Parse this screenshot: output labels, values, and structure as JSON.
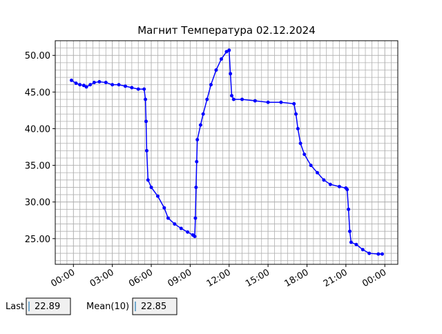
{
  "chart_data": {
    "type": "line",
    "title": "Магнит Температура 02.12.2024",
    "x": [
      -0.15,
      0.2,
      0.5,
      0.8,
      1.0,
      1.3,
      1.6,
      2.0,
      2.5,
      3.0,
      3.5,
      4.0,
      4.5,
      5.0,
      5.45,
      5.55,
      5.6,
      5.65,
      5.75,
      6.0,
      6.5,
      7.0,
      7.3,
      7.8,
      8.3,
      8.8,
      9.2,
      9.35,
      9.4,
      9.45,
      9.5,
      9.55,
      9.8,
      10.0,
      10.3,
      10.6,
      11.0,
      11.4,
      11.8,
      12.0,
      12.1,
      12.2,
      12.35,
      13.0,
      14.0,
      15.0,
      16.0,
      17.0,
      17.15,
      17.3,
      17.5,
      17.8,
      18.3,
      18.8,
      19.3,
      19.8,
      20.5,
      21.0,
      21.1,
      21.2,
      21.3,
      21.4,
      21.8,
      22.3,
      22.8,
      23.5,
      23.8
    ],
    "values": [
      46.6,
      46.2,
      46.0,
      45.9,
      45.7,
      46.0,
      46.3,
      46.4,
      46.3,
      46.0,
      46.0,
      45.8,
      45.6,
      45.4,
      45.4,
      44.0,
      41.0,
      37.0,
      33.0,
      32.0,
      30.8,
      29.2,
      27.8,
      27.0,
      26.4,
      25.9,
      25.5,
      25.3,
      27.8,
      32.0,
      35.5,
      38.5,
      40.5,
      42.0,
      44.0,
      46.0,
      48.0,
      49.5,
      50.5,
      50.7,
      47.5,
      44.5,
      44.0,
      44.0,
      43.8,
      43.6,
      43.6,
      43.4,
      42.0,
      40.0,
      38.0,
      36.5,
      35.0,
      34.0,
      33.0,
      32.4,
      32.1,
      31.9,
      31.7,
      29.0,
      26.0,
      24.5,
      24.2,
      23.5,
      23.0,
      22.9,
      22.9
    ],
    "color": "#0000ff",
    "xlim": [
      -1.4,
      25.0
    ],
    "ylim": [
      21.5,
      52.0
    ],
    "xticks": [
      {
        "value": 0,
        "label": "00:00"
      },
      {
        "value": 3,
        "label": "03:00"
      },
      {
        "value": 6,
        "label": "06:00"
      },
      {
        "value": 9,
        "label": "09:00"
      },
      {
        "value": 12,
        "label": "12:00"
      },
      {
        "value": 15,
        "label": "15:00"
      },
      {
        "value": 18,
        "label": "18:00"
      },
      {
        "value": 21,
        "label": "21:00"
      },
      {
        "value": 24,
        "label": "00:00"
      }
    ],
    "yticks": [
      {
        "value": 25,
        "label": "25.00"
      },
      {
        "value": 30,
        "label": "30.00"
      },
      {
        "value": 35,
        "label": "35.00"
      },
      {
        "value": 40,
        "label": "40.00"
      },
      {
        "value": 45,
        "label": "45.00"
      },
      {
        "value": 50,
        "label": "50.00"
      }
    ],
    "grid": true,
    "minor_grid": {
      "x": 0.5,
      "y": 1
    }
  },
  "controls": [
    {
      "label": "Last",
      "value": "22.89"
    },
    {
      "label": "Mean(10)",
      "value": "22.85"
    }
  ]
}
